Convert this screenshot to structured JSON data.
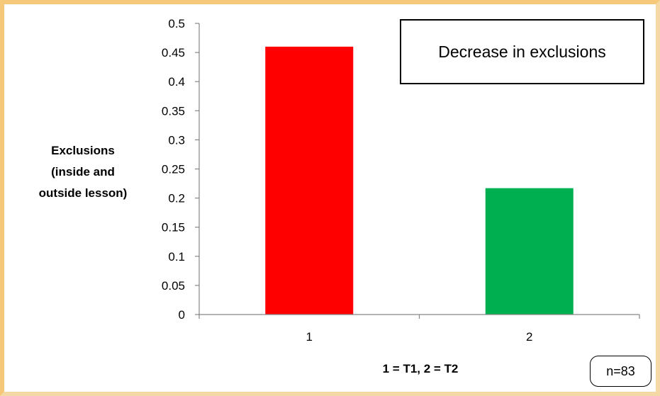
{
  "chart_data": {
    "type": "bar",
    "categories": [
      "1",
      "2"
    ],
    "values": [
      0.46,
      0.217
    ],
    "colors": [
      "#ff0000",
      "#00b050"
    ],
    "ylabel_lines": [
      "Exclusions",
      "(inside and",
      "outside lesson)"
    ],
    "xlabel": "1 = T1, 2 = T2",
    "yticks": [
      "0",
      "0.05",
      "0.1",
      "0.15",
      "0.2",
      "0.25",
      "0.3",
      "0.35",
      "0.4",
      "0.45",
      "0.5"
    ],
    "ylim": [
      0,
      0.5
    ],
    "grid": false
  },
  "annotations": {
    "callout": "Decrease in exclusions",
    "sample_size": "n=83"
  }
}
